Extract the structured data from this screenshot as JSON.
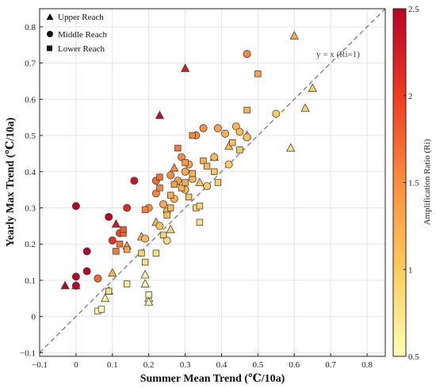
{
  "chart_data": {
    "type": "scatter",
    "xlabel": "Summer Mean Trend (℃/10a)",
    "ylabel": "Yearly Max Trend (℃/10a)",
    "xlim": [
      -0.1,
      0.85
    ],
    "ylim": [
      -0.11,
      0.85
    ],
    "x_ticks": [
      "−0.1",
      "0",
      "0.1",
      "0.2",
      "0.3",
      "0.4",
      "0.5",
      "0.6",
      "0.7",
      "0.8"
    ],
    "y_ticks": [
      "−0.1",
      "0",
      "0.1",
      "0.2",
      "0.3",
      "0.4",
      "0.5",
      "0.6",
      "0.7",
      "0.8"
    ],
    "grid": true,
    "legend_position": "top-left",
    "reference_line": {
      "label": "y = x (Ri=1)",
      "slope": 1,
      "intercept": 0,
      "style": "dashed"
    },
    "colorbar": {
      "label": "Amplification Ratio (Ri)",
      "range": [
        0.5,
        2.5
      ],
      "ticks": [
        "0.5",
        "1",
        "1.5",
        "2",
        "2.5"
      ],
      "colors": [
        "#ffffb2",
        "#fecc5c",
        "#fd8d3c",
        "#f03b20",
        "#bd0026"
      ]
    },
    "series": [
      {
        "name": "Upper Reach",
        "marker": "triangle",
        "points": [
          [
            -0.03,
            0.085
          ],
          [
            0.0,
            0.085
          ],
          [
            0.08,
            0.05
          ],
          [
            0.09,
            0.07
          ],
          [
            0.1,
            0.12
          ],
          [
            0.11,
            0.255
          ],
          [
            0.14,
            0.195
          ],
          [
            0.18,
            0.22
          ],
          [
            0.19,
            0.09
          ],
          [
            0.19,
            0.115
          ],
          [
            0.2,
            0.05
          ],
          [
            0.2,
            0.04
          ],
          [
            0.22,
            0.26
          ],
          [
            0.23,
            0.555
          ],
          [
            0.26,
            0.24
          ],
          [
            0.27,
            0.41
          ],
          [
            0.3,
            0.685
          ],
          [
            0.34,
            0.37
          ],
          [
            0.38,
            0.44
          ],
          [
            0.42,
            0.47
          ],
          [
            0.47,
            0.5
          ],
          [
            0.59,
            0.465
          ],
          [
            0.6,
            0.775
          ],
          [
            0.63,
            0.575
          ],
          [
            0.65,
            0.63
          ]
        ]
      },
      {
        "name": "Middle Reach",
        "marker": "circle",
        "points": [
          [
            0.0,
            0.305
          ],
          [
            0.0,
            0.085
          ],
          [
            0.0,
            0.11
          ],
          [
            0.03,
            0.18
          ],
          [
            0.03,
            0.125
          ],
          [
            0.06,
            0.105
          ],
          [
            0.09,
            0.275
          ],
          [
            0.1,
            0.21
          ],
          [
            0.12,
            0.23
          ],
          [
            0.14,
            0.3
          ],
          [
            0.16,
            0.375
          ],
          [
            0.19,
            0.215
          ],
          [
            0.2,
            0.3
          ],
          [
            0.22,
            0.375
          ],
          [
            0.22,
            0.34
          ],
          [
            0.23,
            0.25
          ],
          [
            0.24,
            0.31
          ],
          [
            0.25,
            0.29
          ],
          [
            0.25,
            0.21
          ],
          [
            0.26,
            0.39
          ],
          [
            0.27,
            0.325
          ],
          [
            0.28,
            0.375
          ],
          [
            0.29,
            0.44
          ],
          [
            0.3,
            0.4
          ],
          [
            0.3,
            0.35
          ],
          [
            0.31,
            0.42
          ],
          [
            0.32,
            0.38
          ],
          [
            0.33,
            0.5
          ],
          [
            0.35,
            0.52
          ],
          [
            0.36,
            0.36
          ],
          [
            0.38,
            0.44
          ],
          [
            0.39,
            0.52
          ],
          [
            0.41,
            0.505
          ],
          [
            0.42,
            0.42
          ],
          [
            0.44,
            0.525
          ],
          [
            0.45,
            0.51
          ],
          [
            0.47,
            0.495
          ],
          [
            0.47,
            0.725
          ],
          [
            0.55,
            0.56
          ]
        ]
      },
      {
        "name": "Lower Reach",
        "marker": "square",
        "points": [
          [
            0.06,
            0.015
          ],
          [
            0.07,
            0.02
          ],
          [
            0.09,
            0.07
          ],
          [
            0.11,
            0.18
          ],
          [
            0.12,
            0.2
          ],
          [
            0.13,
            0.23
          ],
          [
            0.13,
            0.24
          ],
          [
            0.14,
            0.185
          ],
          [
            0.14,
            0.09
          ],
          [
            0.18,
            0.175
          ],
          [
            0.19,
            0.295
          ],
          [
            0.19,
            0.15
          ],
          [
            0.2,
            0.06
          ],
          [
            0.22,
            0.175
          ],
          [
            0.23,
            0.355
          ],
          [
            0.23,
            0.385
          ],
          [
            0.24,
            0.225
          ],
          [
            0.25,
            0.28
          ],
          [
            0.26,
            0.3
          ],
          [
            0.26,
            0.335
          ],
          [
            0.27,
            0.365
          ],
          [
            0.28,
            0.465
          ],
          [
            0.29,
            0.355
          ],
          [
            0.3,
            0.37
          ],
          [
            0.3,
            0.425
          ],
          [
            0.31,
            0.33
          ],
          [
            0.32,
            0.5
          ],
          [
            0.32,
            0.395
          ],
          [
            0.33,
            0.3
          ],
          [
            0.34,
            0.26
          ],
          [
            0.34,
            0.305
          ],
          [
            0.35,
            0.43
          ],
          [
            0.36,
            0.415
          ],
          [
            0.38,
            0.4
          ],
          [
            0.39,
            0.37
          ],
          [
            0.43,
            0.48
          ],
          [
            0.45,
            0.46
          ],
          [
            0.47,
            0.57
          ],
          [
            0.5,
            0.67
          ]
        ]
      }
    ]
  }
}
